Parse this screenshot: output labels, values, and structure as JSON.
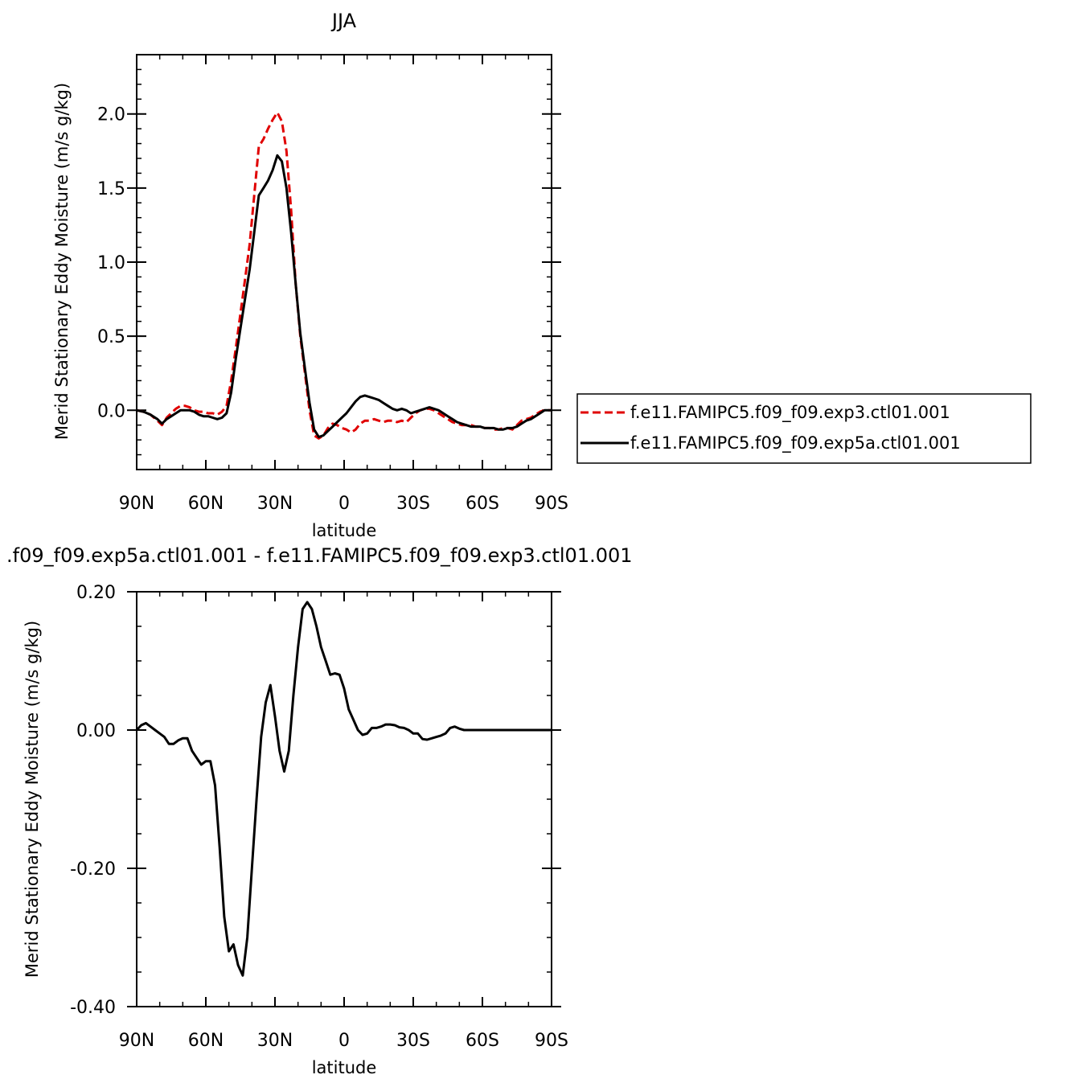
{
  "chart_data": [
    {
      "type": "line",
      "title": "JJA",
      "xlabel": "latitude",
      "ylabel": "Merid Stationary Eddy Moisture (m/s g/kg)",
      "xlim": [
        90,
        -90
      ],
      "ylim": [
        -0.4,
        2.4
      ],
      "x_ticks": [
        90,
        60,
        30,
        0,
        -30,
        -60,
        -90
      ],
      "x_tick_labels": [
        "90N",
        "60N",
        "30N",
        "0",
        "30S",
        "60S",
        "90S"
      ],
      "y_ticks": [
        0.0,
        0.5,
        1.0,
        1.5,
        2.0
      ],
      "y_tick_labels": [
        "0.0",
        "0.5",
        "1.0",
        "1.5",
        "2.0"
      ],
      "legend_position": "right",
      "series": [
        {
          "name": "f.e11.FAMIPC5.f09_f09.exp3.ctl01.001",
          "color": "#e00000",
          "dash": "dashed",
          "x": [
            90,
            87,
            84,
            81,
            79,
            77,
            75,
            73,
            71,
            69,
            67,
            65,
            63,
            61,
            59,
            57,
            55,
            53,
            51,
            49,
            47,
            45,
            43,
            41,
            39,
            37,
            35,
            33,
            31,
            29,
            27,
            25,
            23,
            21,
            19,
            17,
            15,
            13,
            11,
            9,
            7,
            5,
            3,
            1,
            -1,
            -3,
            -5,
            -7,
            -9,
            -11,
            -13,
            -15,
            -17,
            -19,
            -21,
            -23,
            -25,
            -27,
            -29,
            -31,
            -33,
            -35,
            -37,
            -39,
            -41,
            -43,
            -45,
            -47,
            -49,
            -51,
            -53,
            -55,
            -57,
            -59,
            -61,
            -63,
            -65,
            -67,
            -69,
            -71,
            -73,
            -75,
            -77,
            -79,
            -81,
            -83,
            -85,
            -87,
            -90
          ],
          "values": [
            0.0,
            -0.01,
            -0.03,
            -0.07,
            -0.1,
            -0.05,
            -0.02,
            0.01,
            0.03,
            0.03,
            0.02,
            0.0,
            -0.01,
            -0.01,
            -0.02,
            -0.02,
            -0.03,
            -0.01,
            0.03,
            0.2,
            0.42,
            0.65,
            0.88,
            1.12,
            1.45,
            1.78,
            1.83,
            1.9,
            1.96,
            2.01,
            1.95,
            1.75,
            1.35,
            0.85,
            0.5,
            0.25,
            0.0,
            -0.17,
            -0.19,
            -0.17,
            -0.12,
            -0.09,
            -0.1,
            -0.12,
            -0.13,
            -0.15,
            -0.13,
            -0.09,
            -0.07,
            -0.07,
            -0.06,
            -0.07,
            -0.08,
            -0.07,
            -0.07,
            -0.08,
            -0.07,
            -0.08,
            -0.05,
            -0.02,
            0.0,
            0.01,
            0.01,
            0.0,
            -0.02,
            -0.04,
            -0.06,
            -0.08,
            -0.09,
            -0.1,
            -0.1,
            -0.1,
            -0.11,
            -0.11,
            -0.12,
            -0.12,
            -0.13,
            -0.13,
            -0.12,
            -0.12,
            -0.13,
            -0.1,
            -0.07,
            -0.06,
            -0.05,
            -0.03,
            -0.01,
            0.0,
            0.0
          ]
        },
        {
          "name": "f.e11.FAMIPC5.f09_f09.exp5a.ctl01.001",
          "color": "#000000",
          "dash": "solid",
          "x": [
            90,
            87,
            84,
            81,
            79,
            77,
            75,
            73,
            71,
            69,
            67,
            65,
            63,
            61,
            59,
            57,
            55,
            53,
            51,
            49,
            47,
            45,
            43,
            41,
            39,
            37,
            35,
            33,
            31,
            29,
            27,
            25,
            23,
            21,
            19,
            17,
            15,
            13,
            11,
            9,
            7,
            5,
            3,
            1,
            -1,
            -3,
            -5,
            -7,
            -9,
            -11,
            -13,
            -15,
            -17,
            -19,
            -21,
            -23,
            -25,
            -27,
            -29,
            -31,
            -33,
            -35,
            -37,
            -39,
            -41,
            -43,
            -45,
            -47,
            -49,
            -51,
            -53,
            -55,
            -57,
            -59,
            -61,
            -63,
            -65,
            -67,
            -69,
            -71,
            -73,
            -75,
            -77,
            -79,
            -81,
            -83,
            -85,
            -87,
            -90
          ],
          "values": [
            0.0,
            -0.01,
            -0.03,
            -0.06,
            -0.09,
            -0.06,
            -0.04,
            -0.02,
            0.0,
            0.0,
            0.0,
            -0.01,
            -0.03,
            -0.04,
            -0.04,
            -0.05,
            -0.06,
            -0.05,
            -0.02,
            0.12,
            0.35,
            0.55,
            0.75,
            0.95,
            1.2,
            1.45,
            1.5,
            1.55,
            1.62,
            1.72,
            1.68,
            1.5,
            1.2,
            0.85,
            0.52,
            0.28,
            0.05,
            -0.13,
            -0.18,
            -0.17,
            -0.14,
            -0.11,
            -0.08,
            -0.05,
            -0.02,
            0.02,
            0.06,
            0.09,
            0.1,
            0.09,
            0.08,
            0.07,
            0.05,
            0.03,
            0.01,
            0.0,
            0.01,
            0.0,
            -0.02,
            -0.01,
            0.0,
            0.01,
            0.02,
            0.01,
            0.0,
            -0.02,
            -0.04,
            -0.06,
            -0.08,
            -0.09,
            -0.1,
            -0.11,
            -0.11,
            -0.11,
            -0.12,
            -0.12,
            -0.12,
            -0.13,
            -0.13,
            -0.12,
            -0.12,
            -0.11,
            -0.09,
            -0.07,
            -0.06,
            -0.04,
            -0.02,
            0.0,
            0.0
          ]
        }
      ]
    },
    {
      "type": "line",
      "title": ".f09_f09.exp5a.ctl01.001 - f.e11.FAMIPC5.f09_f09.exp3.ctl01.001",
      "xlabel": "latitude",
      "ylabel": "Merid Stationary Eddy Moisture (m/s g/kg)",
      "xlim": [
        90,
        -90
      ],
      "ylim": [
        -0.4,
        0.2
      ],
      "x_ticks": [
        90,
        60,
        30,
        0,
        -30,
        -60,
        -90
      ],
      "x_tick_labels": [
        "90N",
        "60N",
        "30N",
        "0",
        "30S",
        "60S",
        "90S"
      ],
      "y_ticks": [
        0.2,
        0.0,
        -0.2,
        -0.4
      ],
      "y_tick_labels": [
        "0.20",
        "0.00",
        "-0.20",
        "-0.40"
      ],
      "series": [
        {
          "color": "#000000",
          "dash": "solid",
          "x": [
            90,
            88,
            86,
            84,
            82,
            80,
            78,
            76,
            74,
            72,
            70,
            68,
            66,
            64,
            62,
            60,
            58,
            56,
            54,
            52,
            50,
            48,
            46,
            44,
            42,
            40,
            38,
            36,
            34,
            32,
            30,
            28,
            26,
            24,
            22,
            20,
            18,
            16,
            14,
            12,
            10,
            8,
            6,
            4,
            2,
            0,
            -2,
            -4,
            -6,
            -8,
            -10,
            -12,
            -14,
            -16,
            -18,
            -20,
            -22,
            -24,
            -26,
            -28,
            -30,
            -32,
            -34,
            -36,
            -38,
            -40,
            -42,
            -44,
            -46,
            -48,
            -50,
            -52,
            -54,
            -56,
            -58,
            -60,
            -62,
            -64,
            -66,
            -68,
            -70,
            -72,
            -74,
            -76,
            -78,
            -80,
            -82,
            -84,
            -86,
            -88,
            -90
          ],
          "values": [
            0.0,
            0.007,
            0.01,
            0.005,
            0.0,
            -0.005,
            -0.01,
            -0.02,
            -0.02,
            -0.015,
            -0.012,
            -0.012,
            -0.03,
            -0.04,
            -0.05,
            -0.045,
            -0.045,
            -0.08,
            -0.17,
            -0.27,
            -0.32,
            -0.31,
            -0.34,
            -0.355,
            -0.3,
            -0.2,
            -0.1,
            -0.01,
            0.04,
            0.065,
            0.02,
            -0.03,
            -0.06,
            -0.03,
            0.05,
            0.12,
            0.175,
            0.185,
            0.175,
            0.15,
            0.12,
            0.1,
            0.08,
            0.082,
            0.08,
            0.06,
            0.03,
            0.015,
            0.0,
            -0.007,
            -0.005,
            0.003,
            0.003,
            0.005,
            0.008,
            0.008,
            0.007,
            0.004,
            0.003,
            0.0,
            -0.005,
            -0.005,
            -0.013,
            -0.014,
            -0.012,
            -0.01,
            -0.008,
            -0.005,
            0.003,
            0.005,
            0.002,
            0.0,
            0.0,
            0.0,
            0.0,
            0.0,
            0.0,
            0.0,
            0.0,
            0.0,
            0.0,
            0.0,
            0.0,
            0.0,
            0.0,
            0.0,
            0.0,
            0.0,
            0.0,
            0.0,
            0.0
          ]
        }
      ]
    }
  ]
}
